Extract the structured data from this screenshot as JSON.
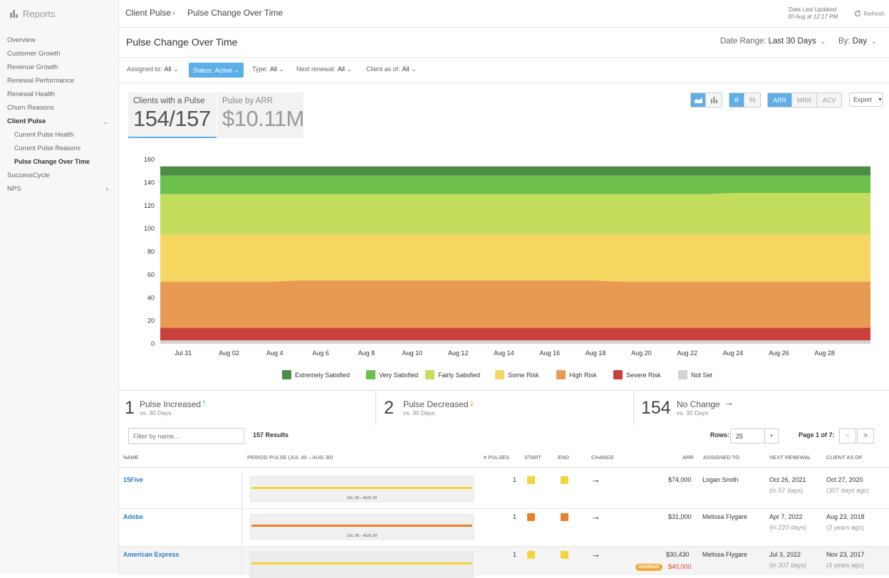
{
  "sidebar": {
    "title": "Reports",
    "items": [
      {
        "label": "Overview"
      },
      {
        "label": "Customer Growth"
      },
      {
        "label": "Revenue Growth"
      },
      {
        "label": "Renewal Performance"
      },
      {
        "label": "Renewal Health"
      },
      {
        "label": "Churn Reasons"
      },
      {
        "label": "Client Pulse"
      },
      {
        "label": "Current Pulse Health"
      },
      {
        "label": "Current Pulse Reasons"
      },
      {
        "label": "Pulse Change Over Time"
      },
      {
        "label": "SuccessCycle"
      },
      {
        "label": "NPS"
      }
    ]
  },
  "topbar": {
    "breadcrumb": [
      "Client Pulse",
      "Pulse Change Over Time"
    ],
    "updated_label": "Data Last Updated:",
    "updated_value": "30 Aug at 12:17 PM",
    "refresh_label": "Refresh"
  },
  "titlebar": {
    "title": "Pulse Change Over Time",
    "date_range_label": "Date Range:",
    "date_range_value": "Last 30 Days",
    "by_label": "By:",
    "by_value": "Day"
  },
  "filters": {
    "assigned_label": "Assigned to:",
    "assigned_value": "All",
    "status_label": "Status:",
    "status_value": "Active",
    "type_label": "Type:",
    "type_value": "All",
    "renewal_label": "Next renewal:",
    "renewal_value": "All",
    "client_as_of_label": "Client as of:",
    "client_as_of_value": "All"
  },
  "stats": {
    "clients_label": "Clients with a Pulse",
    "clients_value": "154/157",
    "arr_label": "Pulse by ARR",
    "arr_value": "$10.11M"
  },
  "toolbar": {
    "metric_buttons": [
      "ARR",
      "MRR",
      "ACV"
    ],
    "hash_label": "#",
    "pct_label": "%",
    "export_label": "Export"
  },
  "chart_data": {
    "type": "area",
    "stacked": true,
    "x": [
      "Jul 30",
      "Jul 31",
      "Aug 01",
      "Aug 02",
      "Aug 03",
      "Aug 4",
      "Aug 5",
      "Aug 6",
      "Aug 7",
      "Aug 8",
      "Aug 9",
      "Aug 10",
      "Aug 11",
      "Aug 12",
      "Aug 13",
      "Aug 14",
      "Aug 15",
      "Aug 16",
      "Aug 17",
      "Aug 18",
      "Aug 19",
      "Aug 20",
      "Aug 21",
      "Aug 22",
      "Aug 23",
      "Aug 24",
      "Aug 25",
      "Aug 26",
      "Aug 27",
      "Aug 28",
      "Aug 29",
      "Aug 30"
    ],
    "x_tick_labels": [
      "Jul 31",
      "Aug 02",
      "Aug 4",
      "Aug 6",
      "Aug 8",
      "Aug 10",
      "Aug 12",
      "Aug 14",
      "Aug 16",
      "Aug 18",
      "Aug 20",
      "Aug 22",
      "Aug 24",
      "Aug 26",
      "Aug 28"
    ],
    "ylim": [
      0,
      160
    ],
    "y_ticks": [
      0,
      20,
      40,
      60,
      80,
      100,
      120,
      140,
      160
    ],
    "legend_position": "bottom",
    "series": [
      {
        "name": "Not Set",
        "color": "#d3d3d3",
        "values": [
          3,
          3,
          3,
          3,
          3,
          3,
          3,
          3,
          3,
          3,
          3,
          3,
          3,
          3,
          3,
          3,
          3,
          3,
          3,
          3,
          3,
          3,
          3,
          3,
          3,
          3,
          3,
          3,
          3,
          3,
          3,
          3
        ]
      },
      {
        "name": "Severe Risk",
        "color": "#c9413d",
        "values": [
          11,
          11,
          11,
          11,
          11,
          11,
          11,
          11,
          11,
          11,
          11,
          11,
          11,
          11,
          11,
          11,
          11,
          11,
          11,
          11,
          11,
          11,
          11,
          11,
          11,
          11,
          11,
          11,
          11,
          11,
          11,
          11
        ]
      },
      {
        "name": "High Risk",
        "color": "#e89a52",
        "values": [
          40,
          40,
          40,
          40,
          40,
          40,
          41,
          41,
          41,
          41,
          41,
          41,
          41,
          41,
          41,
          41,
          41,
          41,
          41,
          41,
          40,
          40,
          40,
          40,
          40,
          40,
          40,
          40,
          40,
          40,
          40,
          40
        ]
      },
      {
        "name": "Some Risk",
        "color": "#f4d660",
        "values": [
          41,
          41,
          41,
          41,
          41,
          41,
          40,
          40,
          40,
          40,
          40,
          40,
          40,
          40,
          40,
          40,
          40,
          40,
          40,
          40,
          41,
          41,
          41,
          41,
          41,
          41,
          41,
          41,
          41,
          41,
          41,
          41
        ]
      },
      {
        "name": "Fairly Satisfied",
        "color": "#c3de5c",
        "values": [
          35,
          35,
          35,
          35,
          35,
          35,
          35,
          35,
          35,
          35,
          35,
          35,
          35,
          35,
          35,
          35,
          35,
          35,
          35,
          35,
          35,
          35,
          35,
          35,
          35,
          36,
          36,
          36,
          36,
          36,
          36,
          36
        ]
      },
      {
        "name": "Very Satisfied",
        "color": "#6cbf4b",
        "values": [
          16,
          16,
          16,
          16,
          16,
          16,
          16,
          16,
          16,
          16,
          16,
          16,
          16,
          16,
          16,
          16,
          16,
          16,
          16,
          16,
          16,
          16,
          16,
          16,
          16,
          15,
          15,
          15,
          15,
          15,
          15,
          15
        ]
      },
      {
        "name": "Extremely Satisfied",
        "color": "#4e8d48",
        "values": [
          8,
          8,
          8,
          8,
          8,
          8,
          8,
          8,
          8,
          8,
          8,
          8,
          8,
          8,
          8,
          8,
          8,
          8,
          8,
          8,
          8,
          8,
          8,
          8,
          8,
          8,
          8,
          8,
          8,
          8,
          8,
          8
        ]
      }
    ],
    "legend_order": [
      "Extremely Satisfied",
      "Very Satisfied",
      "Fairly Satisfied",
      "Some Risk",
      "High Risk",
      "Severe Risk",
      "Not Set"
    ]
  },
  "summary": [
    {
      "number": "1",
      "title": "Pulse Increased",
      "sub": "vs. 30 Days",
      "arrow": "↑",
      "arrow_color": "#4caf50"
    },
    {
      "number": "2",
      "title": "Pulse Decreased",
      "sub": "vs. 30 Days",
      "arrow": "↓",
      "arrow_color": "#e8612c"
    },
    {
      "number": "154",
      "title": "No Change",
      "sub": "vs. 30 Days",
      "arrow": "→",
      "arrow_color": "#444"
    }
  ],
  "table": {
    "filter_placeholder": "Filter by name...",
    "results": "157 Results",
    "rows_label": "Rows:",
    "rows_value": "25",
    "page_label": "Page 1 of 7:",
    "prev": "<",
    "next": ">",
    "headers": [
      "Name",
      "Period Pulse (Jul 30 – Aug 30)",
      "# Pulses",
      "Start",
      "End",
      "Change",
      "ARR",
      "Assigned To",
      "Next Renewal",
      "Client As Of"
    ],
    "rows": [
      {
        "name": "15Five",
        "period_caption": "JUL 30 – AUG 30",
        "pulse_color": "#f4d43c",
        "pulses": "1",
        "start_color": "#f4d43c",
        "end_color": "#f4d43c",
        "change": "→",
        "arr": "$74,000",
        "assigned": "Logan Smith",
        "renewal": "Oct 26, 2021",
        "renewal_sub": "(in 57 days)",
        "client_as_of": "Oct 27, 2020",
        "client_sub": "(307 days ago)"
      },
      {
        "name": "Adobe",
        "period_caption": "JUL 30 – AUG 30",
        "pulse_color": "#e8812c",
        "pulses": "1",
        "start_color": "#e8812c",
        "end_color": "#e8812c",
        "change": "→",
        "arr": "$31,000",
        "assigned": "Melissa Flygare",
        "renewal": "Apr 7, 2022",
        "renewal_sub": "(in 220 days)",
        "client_as_of": "Aug 23, 2018",
        "client_sub": "(3 years ago)"
      },
      {
        "name": "American Express",
        "period_caption": "JUL 30 – AUG 30",
        "pulse_color": "#f4d43c",
        "pulses": "1",
        "start_color": "#f4d43c",
        "end_color": "#f4d43c",
        "change": "→",
        "arr": "$30,430",
        "overdue_label": "OVERDUE",
        "overdue_amount": "$40,000",
        "assigned": "Melissa Flygare",
        "renewal": "Jul 3, 2022",
        "renewal_sub": "(in 307 days)",
        "client_as_of": "Nov 23, 2017",
        "client_sub": "(4 years ago)"
      }
    ]
  }
}
